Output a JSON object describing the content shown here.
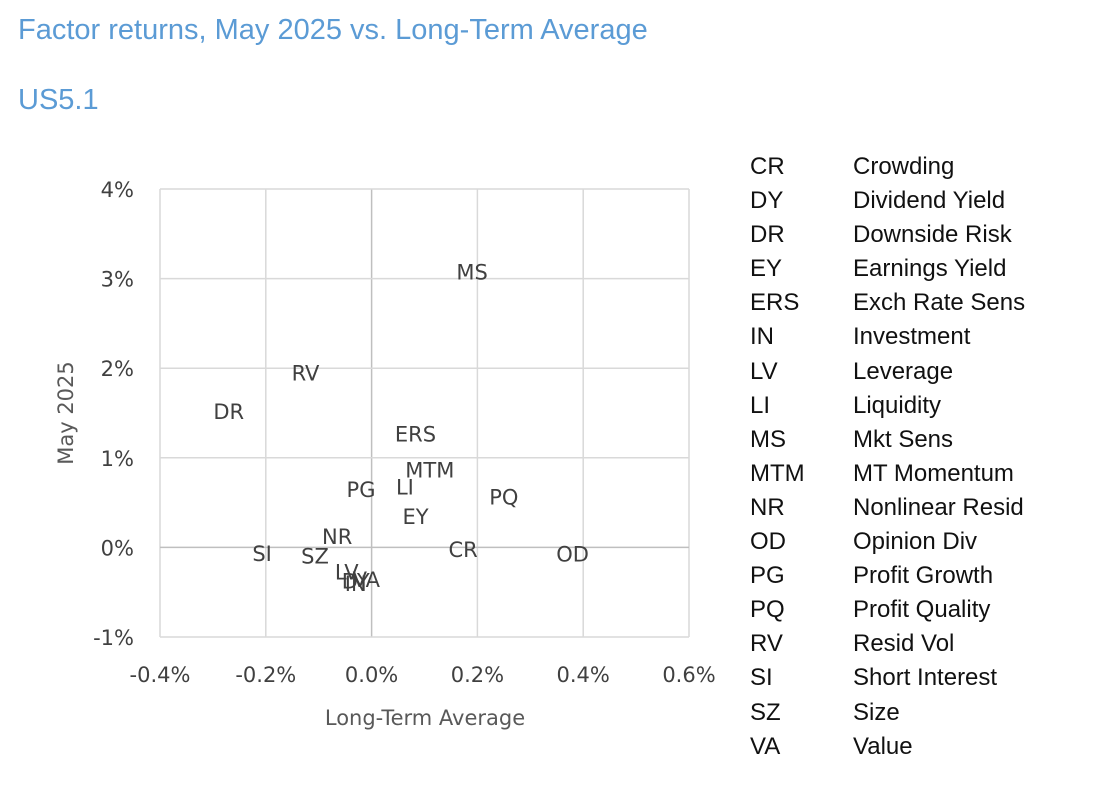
{
  "chart_data": {
    "type": "scatter",
    "title": "Factor returns, May 2025 vs. Long-Term Average",
    "subtitle": "US5.1",
    "xlabel": "Long-Term Average",
    "ylabel": "May 2025",
    "xlim": [
      -0.4,
      0.6
    ],
    "ylim": [
      -1,
      4
    ],
    "x_ticks": [
      -0.4,
      -0.2,
      0.0,
      0.2,
      0.4,
      0.6
    ],
    "y_ticks": [
      -1,
      0,
      1,
      2,
      3,
      4
    ],
    "x_tick_labels": [
      "-0.4%",
      "-0.2%",
      "0.0%",
      "0.2%",
      "0.4%",
      "0.6%"
    ],
    "y_tick_labels": [
      "-1%",
      "0%",
      "1%",
      "2%",
      "3%",
      "4%"
    ],
    "grid": true,
    "legend_position": "right",
    "points": [
      {
        "label": "MS",
        "x": 0.19,
        "y": 3.08
      },
      {
        "label": "RV",
        "x": -0.125,
        "y": 1.95
      },
      {
        "label": "DR",
        "x": -0.27,
        "y": 1.52
      },
      {
        "label": "ERS",
        "x": 0.083,
        "y": 1.27
      },
      {
        "label": "MTM",
        "x": 0.11,
        "y": 0.87
      },
      {
        "label": "PG",
        "x": -0.02,
        "y": 0.65
      },
      {
        "label": "LI",
        "x": 0.063,
        "y": 0.68
      },
      {
        "label": "PQ",
        "x": 0.25,
        "y": 0.57
      },
      {
        "label": "EY",
        "x": 0.083,
        "y": 0.35
      },
      {
        "label": "NR",
        "x": -0.065,
        "y": 0.13
      },
      {
        "label": "SI",
        "x": -0.207,
        "y": -0.06
      },
      {
        "label": "SZ",
        "x": -0.107,
        "y": -0.09
      },
      {
        "label": "CR",
        "x": 0.173,
        "y": -0.02
      },
      {
        "label": "OD",
        "x": 0.38,
        "y": -0.07
      },
      {
        "label": "LV",
        "x": -0.047,
        "y": -0.27
      },
      {
        "label": "DY",
        "x": -0.03,
        "y": -0.37
      },
      {
        "label": "VA",
        "x": -0.01,
        "y": -0.35
      },
      {
        "label": "IN",
        "x": -0.03,
        "y": -0.4
      }
    ],
    "legend": [
      {
        "code": "CR",
        "name": "Crowding"
      },
      {
        "code": "DY",
        "name": "Dividend Yield"
      },
      {
        "code": "DR",
        "name": "Downside Risk"
      },
      {
        "code": "EY",
        "name": "Earnings Yield"
      },
      {
        "code": "ERS",
        "name": "Exch Rate Sens"
      },
      {
        "code": "IN",
        "name": "Investment"
      },
      {
        "code": "LV",
        "name": "Leverage"
      },
      {
        "code": "LI",
        "name": "Liquidity"
      },
      {
        "code": "MS",
        "name": "Mkt Sens"
      },
      {
        "code": "MTM",
        "name": "MT Momentum"
      },
      {
        "code": "NR",
        "name": "Nonlinear Resid"
      },
      {
        "code": "OD",
        "name": "Opinion Div"
      },
      {
        "code": "PG",
        "name": "Profit Growth"
      },
      {
        "code": "PQ",
        "name": "Profit Quality"
      },
      {
        "code": "RV",
        "name": "Resid Vol"
      },
      {
        "code": "SI",
        "name": "Short Interest"
      },
      {
        "code": "SZ",
        "name": "Size"
      },
      {
        "code": "VA",
        "name": "Value"
      }
    ]
  }
}
